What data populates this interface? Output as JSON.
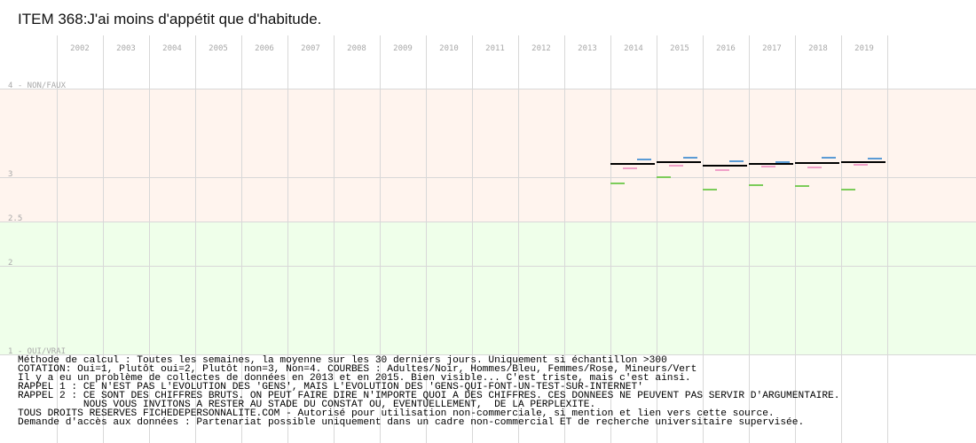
{
  "title": "ITEM 368:J'ai moins d'appétit que d'habitude.",
  "chart_data": {
    "type": "line",
    "title": "ITEM 368:J'ai moins d'appétit que d'habitude.",
    "x_categories": [
      "2002",
      "2003",
      "2004",
      "2005",
      "2006",
      "2007",
      "2008",
      "2009",
      "2010",
      "2011",
      "2012",
      "2013",
      "2014",
      "2015",
      "2016",
      "2017",
      "2018",
      "2019"
    ],
    "y_ticks": [
      {
        "value": 4,
        "label": "4 - NON/FAUX"
      },
      {
        "value": 3,
        "label": "3"
      },
      {
        "value": 2.5,
        "label": "2.5"
      },
      {
        "value": 2,
        "label": "2"
      },
      {
        "value": 1,
        "label": "1 - OUI/VRAI"
      }
    ],
    "ylim": [
      1,
      4
    ],
    "grid": true,
    "bands": [
      {
        "from": 2.5,
        "to": 4,
        "color": "#fff4ee"
      },
      {
        "from": 1,
        "to": 2.5,
        "color": "#efffea"
      }
    ],
    "series": [
      {
        "key": "adultes",
        "color": "#000000",
        "thickness": 2,
        "values": [
          null,
          null,
          null,
          null,
          null,
          null,
          null,
          null,
          null,
          null,
          null,
          null,
          3.15,
          3.17,
          3.13,
          3.15,
          3.16,
          3.17
        ]
      },
      {
        "key": "hommes",
        "color": "#5b9bd5",
        "thickness": 2,
        "values": [
          null,
          null,
          null,
          null,
          null,
          null,
          null,
          null,
          null,
          null,
          null,
          null,
          3.2,
          3.22,
          3.18,
          3.17,
          3.22,
          3.21
        ]
      },
      {
        "key": "femmes",
        "color": "#f0a0c8",
        "thickness": 2,
        "values": [
          null,
          null,
          null,
          null,
          null,
          null,
          null,
          null,
          null,
          null,
          null,
          null,
          3.1,
          3.13,
          3.08,
          3.12,
          3.11,
          3.14
        ]
      },
      {
        "key": "mineurs",
        "color": "#7ccc5a",
        "thickness": 2,
        "values": [
          null,
          null,
          null,
          null,
          null,
          null,
          null,
          null,
          null,
          null,
          null,
          null,
          2.93,
          3.0,
          2.86,
          2.91,
          2.9,
          2.86
        ]
      }
    ]
  },
  "notes": [
    "Méthode de calcul : Toutes les semaines, la moyenne sur les 30 derniers jours. Uniquement si échantillon >300",
    "COTATION: Oui=1, Plutôt oui=2, Plutôt non=3, Non=4. COURBES : Adultes/Noir, Hommes/Bleu, Femmes/Rose, Mineurs/Vert",
    "Il y a eu un problème de collectes de données en 2013 et en 2015. Bien visible... C'est triste, mais c'est ainsi.",
    "RAPPEL 1 : CE N'EST PAS L'EVOLUTION DES 'GENS', MAIS L'EVOLUTION DES 'GENS-QUI-FONT-UN-TEST-SUR-INTERNET'",
    "RAPPEL 2 : CE SONT DES CHIFFRES BRUTS. ON PEUT FAIRE DIRE N'IMPORTE QUOI A DES CHIFFRES. CES DONNEES NE PEUVENT PAS SERVIR D'ARGUMENTAIRE.",
    "           NOUS VOUS INVITONS A RESTER AU STADE DU CONSTAT OU, EVENTUELLEMENT,  DE LA PERPLEXITE.",
    "TOUS DROITS RESERVES FICHEDEPERSONNALITE.COM - Autorisé pour utilisation non-commerciale, si mention et lien vers cette source.",
    "Demande d'accès aux données : Partenariat possible uniquement dans un cadre non-commercial ET de recherche universitaire supervisée."
  ]
}
